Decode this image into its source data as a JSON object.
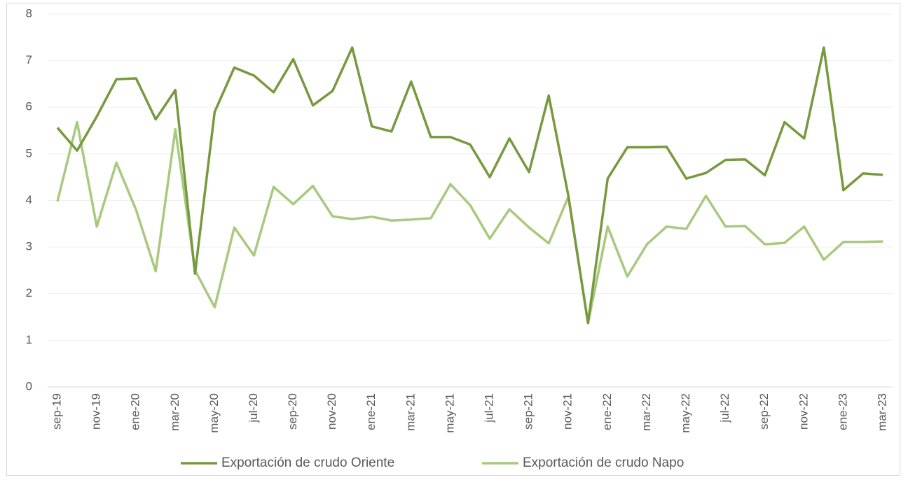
{
  "chart_data": {
    "type": "line",
    "categories": [
      "sep-19",
      null,
      "nov-19",
      null,
      "ene-20",
      null,
      "mar-20",
      null,
      "may-20",
      null,
      "jul-20",
      null,
      "sep-20",
      null,
      "nov-20",
      null,
      "ene-21",
      null,
      "mar-21",
      null,
      "may-21",
      null,
      "jul-21",
      null,
      "sep-21",
      null,
      "nov-21",
      null,
      "ene-22",
      null,
      "mar-22",
      null,
      "may-22",
      null,
      "jul-22",
      null,
      "sep-22",
      null,
      "nov-22",
      null,
      "ene-23",
      null,
      "mar-23"
    ],
    "series": [
      {
        "name": "Exportación de crudo Oriente",
        "color": "#77993f",
        "values": [
          5.56,
          5.07,
          5.8,
          6.6,
          6.62,
          5.74,
          6.37,
          2.43,
          5.9,
          6.85,
          6.68,
          6.32,
          7.03,
          6.04,
          6.35,
          7.28,
          5.59,
          5.48,
          6.55,
          5.36,
          5.36,
          5.2,
          4.5,
          5.33,
          4.61,
          6.25,
          4.1,
          1.37,
          4.47,
          5.14,
          5.14,
          5.15,
          4.47,
          4.59,
          4.87,
          4.88,
          4.54,
          5.68,
          5.33,
          7.28,
          4.22,
          4.58,
          4.55
        ]
      },
      {
        "name": "Exportación de crudo Napo",
        "color": "#a9c97f",
        "values": [
          3.98,
          5.68,
          3.44,
          4.81,
          3.8,
          2.48,
          5.53,
          2.5,
          1.71,
          3.42,
          2.82,
          4.29,
          3.92,
          4.31,
          3.66,
          3.6,
          3.65,
          3.57,
          3.59,
          3.62,
          4.35,
          3.9,
          3.18,
          3.81,
          3.42,
          3.08,
          4.08,
          1.37,
          3.44,
          2.37,
          3.06,
          3.44,
          3.39,
          4.1,
          3.44,
          3.45,
          3.06,
          3.09,
          3.44,
          2.73,
          3.11,
          3.11,
          3.12
        ]
      }
    ],
    "ylim": [
      0,
      8
    ],
    "yticks": [
      0,
      1,
      2,
      3,
      4,
      5,
      6,
      7,
      8
    ],
    "grid": true,
    "legend": "bottom"
  }
}
